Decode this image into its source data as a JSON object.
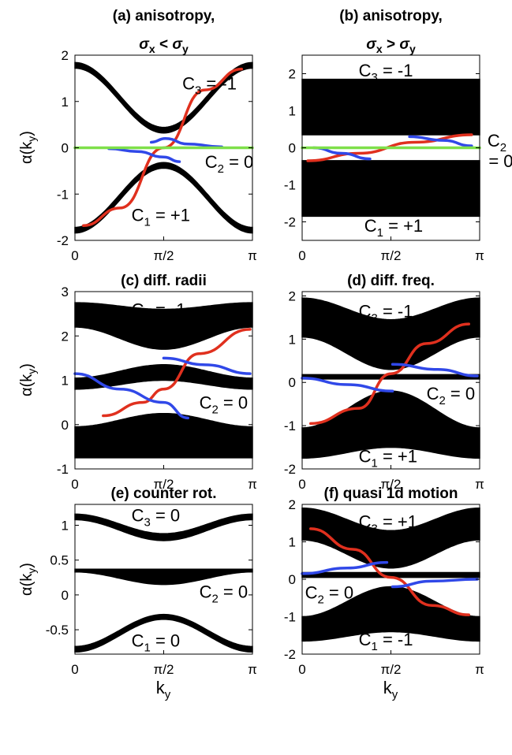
{
  "colors": {
    "band": "#000000",
    "red": "#e0301e",
    "blue": "#3048e8",
    "green": "#7ee04a"
  },
  "labels": {
    "ylabel": "α(k",
    "ylabel_sub": "y",
    "ylabel_end": ")",
    "xlabel": "k",
    "xlabel_sub": "y"
  },
  "chart_data": [
    {
      "id": "a",
      "type": "line",
      "title": "(a) anisotropy,",
      "title2": "σ_x < σ_y",
      "xlim": [
        0,
        3.1416
      ],
      "ylim": [
        -2,
        2
      ],
      "yticks": [
        -2,
        -1,
        0,
        1,
        2
      ],
      "yticklabels": [
        "-2",
        "-1",
        "0",
        "1",
        "2"
      ],
      "xticklabels": [
        "0",
        "π/2",
        "π"
      ],
      "annotations": [
        {
          "text": "C",
          "sub": "3",
          "rest": " = -1",
          "x": 1.9,
          "y": 1.4
        },
        {
          "text": "C",
          "sub": "2",
          "rest": " = 0",
          "x": 2.3,
          "y": -0.3
        },
        {
          "text": "C",
          "sub": "1",
          "rest": " = +1",
          "x": 1.0,
          "y": -1.45
        }
      ],
      "bands": [
        {
          "shape": "cos",
          "center": 1.08,
          "amp": 0.7,
          "width": 0.12
        },
        {
          "shape": "negcos",
          "center": -1.08,
          "amp": 0.7,
          "width": 0.12
        }
      ],
      "curves": [
        {
          "color": "red",
          "x": [
            0.15,
            0.8,
            1.57,
            2.3,
            2.95
          ],
          "y": [
            -1.68,
            -1.3,
            0.0,
            1.25,
            1.7
          ]
        },
        {
          "color": "blue",
          "x": [
            1.35,
            1.6,
            2.0,
            2.6
          ],
          "y": [
            0.12,
            0.2,
            0.08,
            0.02
          ]
        },
        {
          "color": "blue",
          "x": [
            0.6,
            1.1,
            1.57,
            1.85
          ],
          "y": [
            -0.02,
            -0.08,
            -0.2,
            -0.3
          ]
        },
        {
          "color": "green",
          "x": [
            0.0,
            3.1416
          ],
          "y": [
            0.0,
            0.0
          ]
        }
      ]
    },
    {
      "id": "b",
      "type": "line",
      "title": "(b) anisotropy,",
      "title2": "σ_x > σ_y",
      "xlim": [
        0,
        3.1416
      ],
      "ylim": [
        -2.5,
        2.5
      ],
      "yticks": [
        -2,
        -1,
        0,
        1,
        2
      ],
      "yticklabels": [
        "-2",
        "-1",
        "0",
        "1",
        "2"
      ],
      "xticklabels": [
        "0",
        "π/2",
        "π"
      ],
      "annotations": [
        {
          "text": "C",
          "sub": "3",
          "rest": " = -1",
          "x": 1.0,
          "y": 2.1
        },
        {
          "text": "C",
          "sub": "2",
          "rest": "",
          "x": 3.28,
          "y": 0.2
        },
        {
          "text": "= 0",
          "sub": "",
          "rest": "",
          "x": 3.3,
          "y": -0.35
        },
        {
          "text": "C",
          "sub": "1",
          "rest": " = +1",
          "x": 1.1,
          "y": -2.1
        }
      ],
      "bands": [
        {
          "shape": "flat",
          "lo": 0.35,
          "hi": 1.85
        },
        {
          "shape": "flat",
          "lo": -1.85,
          "hi": -0.35
        }
      ],
      "curves": [
        {
          "color": "red",
          "x": [
            0.1,
            1.0,
            2.0,
            3.0
          ],
          "y": [
            -0.35,
            -0.15,
            0.15,
            0.35
          ]
        },
        {
          "color": "blue",
          "x": [
            0.2,
            0.7,
            1.2
          ],
          "y": [
            0.0,
            -0.15,
            -0.3
          ]
        },
        {
          "color": "blue",
          "x": [
            1.9,
            2.5,
            3.0
          ],
          "y": [
            0.3,
            0.2,
            0.05
          ]
        },
        {
          "color": "green",
          "x": [
            0.0,
            3.1416
          ],
          "y": [
            0.0,
            0.0
          ]
        }
      ]
    },
    {
      "id": "c",
      "type": "line",
      "title": "(c) diff. radii",
      "title2": "",
      "xlim": [
        0,
        3.1416
      ],
      "ylim": [
        -1,
        3
      ],
      "yticks": [
        -1,
        0,
        1,
        2,
        3
      ],
      "yticklabels": [
        "-1",
        "0",
        "1",
        "2",
        "3"
      ],
      "xticklabels": [
        "0",
        "π/2",
        "π"
      ],
      "annotations": [
        {
          "text": "C",
          "sub": "3",
          "rest": " = -1",
          "x": 1.0,
          "y": 2.6
        },
        {
          "text": "C",
          "sub": "2",
          "rest": " = 0",
          "x": 2.2,
          "y": 0.5
        },
        {
          "text": "C",
          "sub": "1",
          "rest": " = +1",
          "x": 1.0,
          "y": -0.5
        }
      ],
      "bands": [
        {
          "shape": "cosband",
          "lo0": 2.2,
          "lo1": 1.7,
          "hi0": 2.75,
          "hi1": 2.6
        },
        {
          "shape": "bump",
          "lo0": 0.8,
          "lo1": 1.0,
          "hi0": 1.05,
          "hi1": 1.35
        },
        {
          "shape": "cosband",
          "lo0": -0.75,
          "lo1": -0.75,
          "hi0": -0.05,
          "hi1": 0.25
        }
      ],
      "curves": [
        {
          "color": "red",
          "x": [
            0.5,
            1.2,
            1.57,
            2.2,
            3.1
          ],
          "y": [
            0.2,
            0.5,
            0.8,
            1.6,
            2.15
          ]
        },
        {
          "color": "blue",
          "x": [
            0.0,
            0.8,
            1.57,
            2.0
          ],
          "y": [
            1.15,
            0.8,
            0.5,
            0.15
          ]
        },
        {
          "color": "blue",
          "x": [
            1.57,
            2.3,
            3.1
          ],
          "y": [
            1.5,
            1.35,
            1.15
          ]
        }
      ]
    },
    {
      "id": "d",
      "type": "line",
      "title": "(d) diff. freq.",
      "title2": "",
      "xlim": [
        0,
        3.1416
      ],
      "ylim": [
        -2,
        2.1
      ],
      "yticks": [
        -2,
        -1,
        0,
        1,
        2
      ],
      "yticklabels": [
        "-2",
        "-1",
        "0",
        "1",
        "2"
      ],
      "xticklabels": [
        "0",
        "π/2",
        "π"
      ],
      "annotations": [
        {
          "text": "C",
          "sub": "3",
          "rest": " = -1",
          "x": 1.0,
          "y": 1.65
        },
        {
          "text": "C",
          "sub": "2",
          "rest": " = 0",
          "x": 2.2,
          "y": -0.25
        },
        {
          "text": "C",
          "sub": "1",
          "rest": " = +1",
          "x": 1.0,
          "y": -1.7
        }
      ],
      "bands": [
        {
          "shape": "cosband",
          "lo0": 1.05,
          "lo1": 0.3,
          "hi0": 1.95,
          "hi1": 1.45
        },
        {
          "shape": "flat",
          "lo": 0.08,
          "hi": 0.18
        },
        {
          "shape": "cosband",
          "lo0": -1.75,
          "lo1": -1.5,
          "hi0": -1.05,
          "hi1": -0.2
        }
      ],
      "curves": [
        {
          "color": "red",
          "x": [
            0.15,
            1.0,
            1.57,
            2.2,
            2.95
          ],
          "y": [
            -0.95,
            -0.6,
            0.2,
            0.9,
            1.35
          ]
        },
        {
          "color": "blue",
          "x": [
            0.0,
            0.8,
            1.6
          ],
          "y": [
            0.1,
            -0.05,
            -0.2
          ]
        },
        {
          "color": "blue",
          "x": [
            1.6,
            2.4,
            3.1
          ],
          "y": [
            0.42,
            0.3,
            0.15
          ]
        }
      ]
    },
    {
      "id": "e",
      "type": "line",
      "title": "(e) counter rot.",
      "title2": "",
      "xlim": [
        0,
        3.1416
      ],
      "ylim": [
        -0.85,
        1.3
      ],
      "yticks": [
        -0.5,
        0,
        0.5,
        1
      ],
      "yticklabels": [
        "-0.5",
        "0",
        "0.5",
        "1"
      ],
      "xticklabels": [
        "0",
        "π/2",
        "π"
      ],
      "annotations": [
        {
          "text": "C",
          "sub": "3",
          "rest": " = 0",
          "x": 1.0,
          "y": 1.15
        },
        {
          "text": "C",
          "sub": "2",
          "rest": " = 0",
          "x": 2.2,
          "y": 0.05
        },
        {
          "text": "C",
          "sub": "1",
          "rest": " = 0",
          "x": 1.0,
          "y": -0.65
        }
      ],
      "bands": [
        {
          "shape": "cosband",
          "lo0": 1.08,
          "lo1": 0.78,
          "hi0": 1.16,
          "hi1": 0.88
        },
        {
          "shape": "cosband",
          "lo0": 0.33,
          "lo1": 0.15,
          "hi0": 0.37,
          "hi1": 0.37
        },
        {
          "shape": "cosband",
          "lo0": -0.82,
          "lo1": -0.35,
          "hi0": -0.74,
          "hi1": -0.28
        }
      ],
      "curves": []
    },
    {
      "id": "f",
      "type": "line",
      "title": "(f) quasi 1d motion",
      "title2": "",
      "xlim": [
        0,
        3.1416
      ],
      "ylim": [
        -2,
        2
      ],
      "yticks": [
        -2,
        -1,
        0,
        1,
        2
      ],
      "yticklabels": [
        "-2",
        "-1",
        "0",
        "1",
        "2"
      ],
      "xticklabels": [
        "0",
        "π/2",
        "π"
      ],
      "annotations": [
        {
          "text": "C",
          "sub": "3",
          "rest": " = +1",
          "x": 1.0,
          "y": 1.55
        },
        {
          "text": "C",
          "sub": "2",
          "rest": " = 0",
          "x": 0.05,
          "y": -0.35
        },
        {
          "text": "C",
          "sub": "1",
          "rest": " = -1",
          "x": 1.0,
          "y": -1.6
        }
      ],
      "bands": [
        {
          "shape": "cosband",
          "lo0": 1.05,
          "lo1": 0.3,
          "hi0": 1.9,
          "hi1": 1.3
        },
        {
          "shape": "flat",
          "lo": 0.05,
          "hi": 0.18
        },
        {
          "shape": "cosband",
          "lo0": -1.65,
          "lo1": -1.4,
          "hi0": -1.0,
          "hi1": -0.2
        }
      ],
      "curves": [
        {
          "color": "red",
          "x": [
            0.15,
            0.9,
            1.57,
            2.3,
            2.95
          ],
          "y": [
            1.35,
            0.8,
            0.05,
            -0.7,
            -0.95
          ]
        },
        {
          "color": "blue",
          "x": [
            0.0,
            0.8,
            1.5
          ],
          "y": [
            0.15,
            0.3,
            0.45
          ]
        },
        {
          "color": "blue",
          "x": [
            1.6,
            2.3,
            3.1
          ],
          "y": [
            -0.2,
            -0.05,
            0.0
          ]
        }
      ]
    }
  ]
}
